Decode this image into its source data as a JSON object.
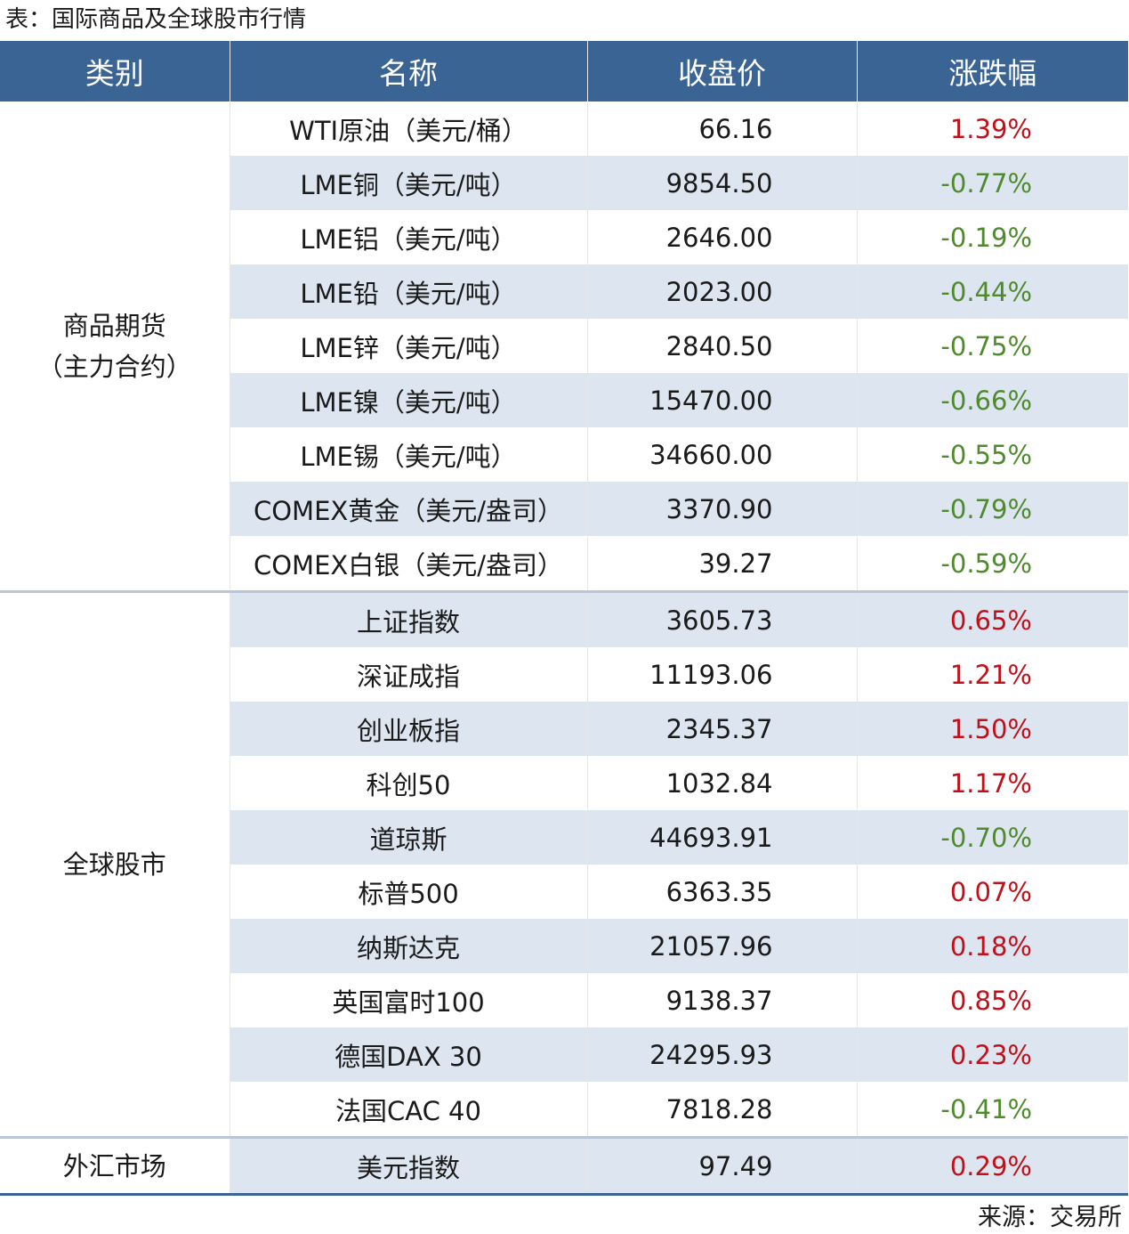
{
  "title": "表：国际商品及全球股市行情",
  "headers": [
    "类别",
    "名称",
    "收盘价",
    "涨跌幅"
  ],
  "groups": [
    {
      "category": "商品期货\n（主力合约）",
      "rows": [
        [
          "WTI原油（美元/桶）",
          "66.16",
          "1.39%"
        ],
        [
          "LME铜（美元/吨）",
          "9854.50",
          "-0.77%"
        ],
        [
          "LME铝（美元/吨）",
          "2646.00",
          "-0.19%"
        ],
        [
          "LME铅（美元/吨）",
          "2023.00",
          "-0.44%"
        ],
        [
          "LME锌（美元/吨）",
          "2840.50",
          "-0.75%"
        ],
        [
          "LME镍（美元/吨）",
          "15470.00",
          "-0.66%"
        ],
        [
          "LME锡（美元/吨）",
          "34660.00",
          "-0.55%"
        ],
        [
          "COMEX黄金（美元/盎司）",
          "3370.90",
          "-0.79%"
        ],
        [
          "COMEX白银（美元/盎司）",
          "39.27",
          "-0.59%"
        ]
      ]
    },
    {
      "category": "全球股市",
      "rows": [
        [
          "上证指数",
          "3605.73",
          "0.65%"
        ],
        [
          "深证成指",
          "11193.06",
          "1.21%"
        ],
        [
          "创业板指",
          "2345.37",
          "1.50%"
        ],
        [
          "科创50",
          "1032.84",
          "1.17%"
        ],
        [
          "道琼斯",
          "44693.91",
          "-0.70%"
        ],
        [
          "标普500",
          "6363.35",
          "0.07%"
        ],
        [
          "纳斯达克",
          "21057.96",
          "0.18%"
        ],
        [
          "英国富时100",
          "9138.37",
          "0.85%"
        ],
        [
          "德国DAX 30",
          "24295.93",
          "0.23%"
        ],
        [
          "法国CAC 40",
          "7818.28",
          "-0.41%"
        ]
      ]
    },
    {
      "category": "外汇市场",
      "rows": [
        [
          "美元指数",
          "97.49",
          "0.29%"
        ]
      ]
    }
  ],
  "source": "来源：交易所"
}
